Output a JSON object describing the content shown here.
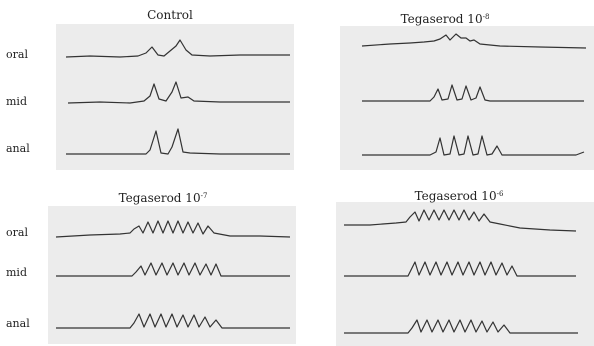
{
  "panels": [
    {
      "key": "control",
      "title": "Control",
      "exponent": "",
      "labels": [
        "oral",
        "mid",
        "anal"
      ]
    },
    {
      "key": "t8",
      "title": "Tegaserod 10",
      "exponent": "-8",
      "labels": []
    },
    {
      "key": "t7",
      "title": "Tegaserod 10",
      "exponent": "-7",
      "labels": [
        "oral",
        "mid",
        "anal"
      ]
    },
    {
      "key": "t6",
      "title": "Tegaserod 10",
      "exponent": "-6",
      "labels": []
    }
  ]
}
